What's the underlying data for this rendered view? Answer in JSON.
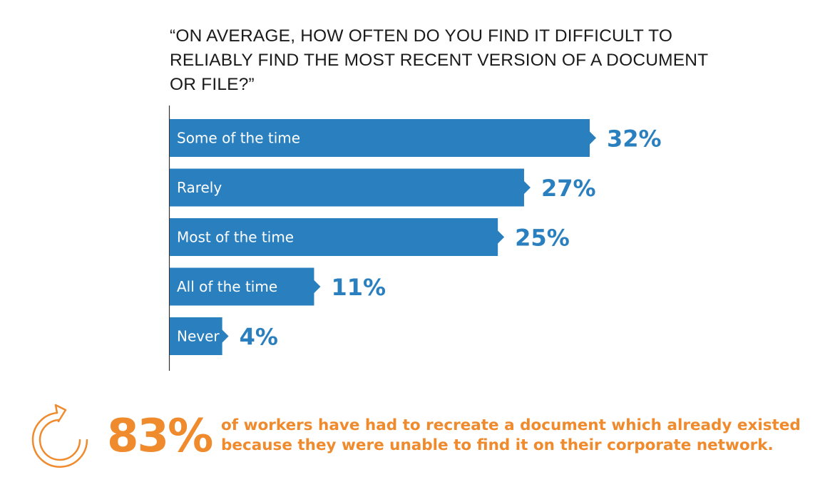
{
  "colors": {
    "bar": "#2a7fbf",
    "callout": "#ef8a2d",
    "text": "#1a1a1a"
  },
  "chart_data": {
    "type": "bar",
    "orientation": "horizontal",
    "title": "“ON AVERAGE, HOW OFTEN DO YOU FIND IT DIFFICULT TO RELIABLY FIND THE MOST RECENT VERSION OF A DOCUMENT OR FILE?”",
    "categories": [
      "Some of the time",
      "Rarely",
      "Most of the time",
      "All of the time",
      "Never"
    ],
    "values": [
      32,
      27,
      25,
      11,
      4
    ],
    "value_labels": [
      "32%",
      "27%",
      "25%",
      "11%",
      "4%"
    ],
    "unit": "%",
    "xlim": [
      0,
      32
    ],
    "grid": false
  },
  "callout": {
    "icon": "circular-arrow-icon",
    "stat": "83%",
    "line1": "of workers have had to recreate a document which already existed",
    "line2": "because they were unable to find it on their corporate network."
  }
}
